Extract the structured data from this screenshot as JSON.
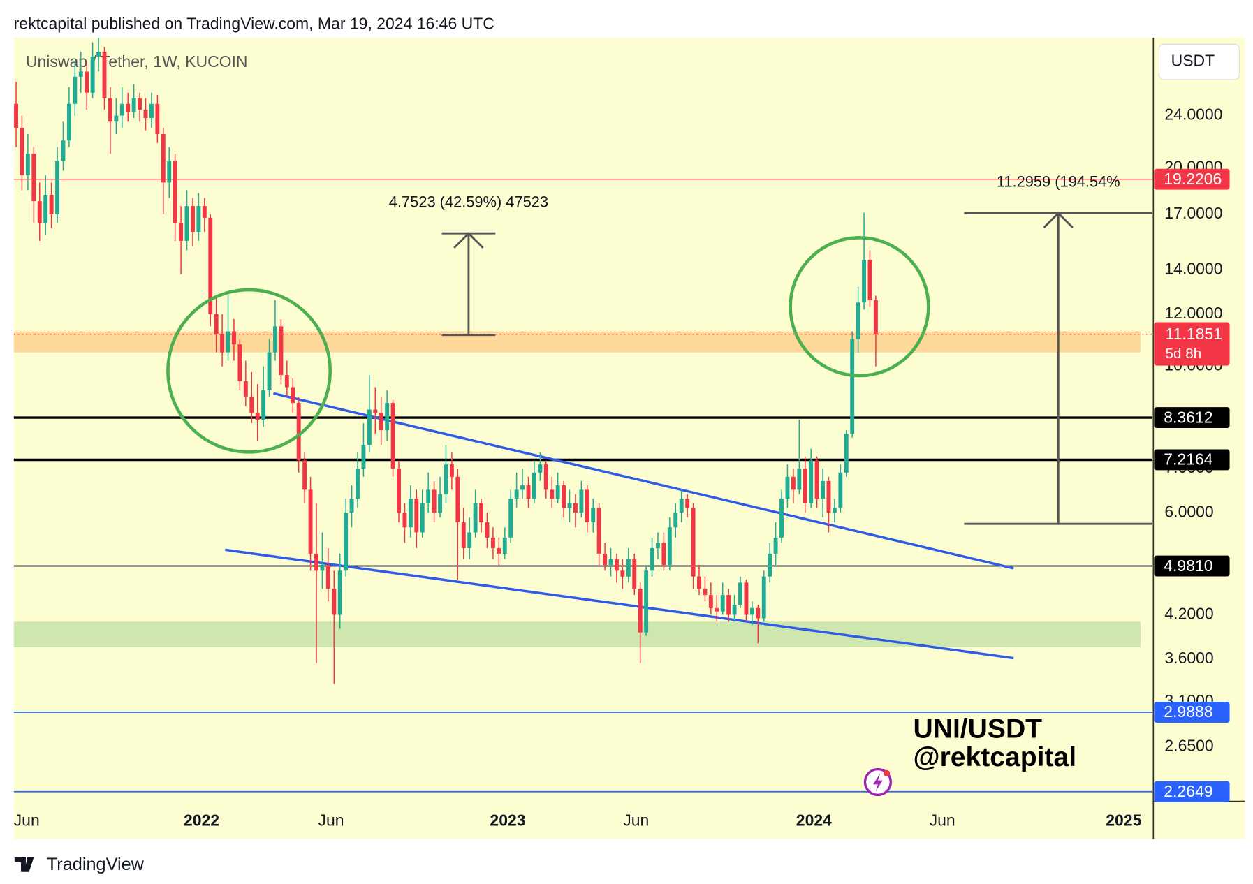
{
  "header": {
    "text": "rektcapital published on TradingView.com, Mar 19, 2024 16:46 UTC"
  },
  "chart_data": {
    "type": "candlestick",
    "title": "Uniswap / Tether, 1W, KUCOIN",
    "currency": "USDT",
    "up_color": "#22ab94",
    "down_color": "#f23645",
    "log_scale": true,
    "xlim": [
      -0.4,
      193
    ],
    "xticks": [
      {
        "value": 1.8,
        "label": "Jun",
        "bold": false
      },
      {
        "value": 31.5,
        "label": "2022",
        "bold": true
      },
      {
        "value": 53.5,
        "label": "Jun",
        "bold": false
      },
      {
        "value": 83.5,
        "label": "2023",
        "bold": true
      },
      {
        "value": 105.3,
        "label": "Jun",
        "bold": false
      },
      {
        "value": 135.5,
        "label": "2024",
        "bold": true
      },
      {
        "value": 157.3,
        "label": "Jun",
        "bold": false
      },
      {
        "value": 188.1,
        "label": "2025",
        "bold": true
      }
    ],
    "ylim": [
      2.19,
      31.5
    ],
    "yticks": [
      {
        "value": 24,
        "label": "24.0000"
      },
      {
        "value": 20,
        "label": "20.0000"
      },
      {
        "value": 17,
        "label": "17.0000"
      },
      {
        "value": 14,
        "label": "14.0000"
      },
      {
        "value": 12,
        "label": "12.0000"
      },
      {
        "value": 10,
        "label": "10.0000"
      },
      {
        "value": 7,
        "label": "7.0000"
      },
      {
        "value": 6,
        "label": "6.0000"
      },
      {
        "value": 4.2,
        "label": "4.2000"
      },
      {
        "value": 3.6,
        "label": "3.6000"
      },
      {
        "value": 3.1,
        "label": "3.1000"
      },
      {
        "value": 2.65,
        "label": "2.6500"
      }
    ],
    "ohlc": [
      [
        25,
        27,
        21.5,
        23
      ],
      [
        23,
        24,
        18.5,
        19.5
      ],
      [
        19.5,
        22.5,
        18.5,
        21
      ],
      [
        21,
        21.5,
        16.5,
        17.8
      ],
      [
        17.8,
        19,
        15.5,
        16.5
      ],
      [
        16.5,
        19.5,
        15.8,
        18.2
      ],
      [
        18.2,
        19,
        16.2,
        17
      ],
      [
        17,
        21.5,
        16.5,
        20.5
      ],
      [
        20.5,
        23.5,
        19.8,
        22
      ],
      [
        22,
        26.5,
        21.5,
        25
      ],
      [
        25,
        29,
        24,
        27.5
      ],
      [
        27.5,
        30,
        26,
        28
      ],
      [
        28,
        29,
        24.5,
        26
      ],
      [
        26,
        31,
        25.5,
        29.5
      ],
      [
        29.5,
        31.5,
        28,
        30
      ],
      [
        30,
        30.5,
        24.5,
        25.5
      ],
      [
        25.5,
        26.5,
        21,
        23.5
      ],
      [
        23.5,
        25.5,
        22.5,
        24
      ],
      [
        24,
        26.5,
        23,
        25
      ],
      [
        25,
        26,
        23.5,
        24.3
      ],
      [
        24.3,
        26.8,
        23.8,
        25.5
      ],
      [
        25.5,
        26,
        23.5,
        24.5
      ],
      [
        24.5,
        25.5,
        22.8,
        23.8
      ],
      [
        23.8,
        26,
        23,
        25
      ],
      [
        25,
        25.8,
        21.8,
        22.5
      ],
      [
        22.5,
        23,
        17,
        19
      ],
      [
        19,
        21.5,
        18,
        20.5
      ],
      [
        20.5,
        21,
        15.5,
        16.5
      ],
      [
        16.5,
        17.5,
        13.8,
        15.5
      ],
      [
        15.5,
        18.5,
        15,
        17.5
      ],
      [
        17.5,
        18,
        15.2,
        16
      ],
      [
        16,
        18.3,
        15.5,
        17.5
      ],
      [
        17.5,
        18,
        16,
        16.8
      ],
      [
        16.8,
        17,
        11.5,
        12
      ],
      [
        12,
        12.8,
        10.5,
        11.2
      ],
      [
        11.2,
        12,
        10,
        10.5
      ],
      [
        10.5,
        12.8,
        10.2,
        11.3
      ],
      [
        11.3,
        11.8,
        10.2,
        10.8
      ],
      [
        10.8,
        11,
        9.2,
        9.5
      ],
      [
        9.5,
        10.2,
        8.7,
        9
      ],
      [
        9,
        9.8,
        8.2,
        8.5
      ],
      [
        8.5,
        9.4,
        7.7,
        8.3
      ],
      [
        8.3,
        10,
        8.1,
        9.2
      ],
      [
        9.2,
        11,
        9,
        10.5
      ],
      [
        10.5,
        12.6,
        10.2,
        11.5
      ],
      [
        11.5,
        11.8,
        9.4,
        9.7
      ],
      [
        9.7,
        10.2,
        9,
        9.3
      ],
      [
        9.3,
        9.6,
        8.5,
        8.8
      ],
      [
        8.8,
        9,
        6.9,
        7.2
      ],
      [
        7.2,
        7.4,
        6.2,
        6.5
      ],
      [
        6.5,
        6.8,
        4.9,
        5.2
      ],
      [
        5.2,
        6.2,
        3.55,
        4.9
      ],
      [
        4.9,
        5.6,
        4.6,
        5
      ],
      [
        5,
        5.3,
        4.4,
        4.6
      ],
      [
        4.6,
        4.9,
        3.3,
        4.2
      ],
      [
        4.2,
        5.2,
        4,
        4.9
      ],
      [
        4.9,
        6.3,
        4.8,
        6
      ],
      [
        6,
        6.6,
        5.7,
        6.3
      ],
      [
        6.3,
        7.4,
        6.1,
        7
      ],
      [
        7,
        8.2,
        6.8,
        7.6
      ],
      [
        7.6,
        9.7,
        7.4,
        8.6
      ],
      [
        8.6,
        9.3,
        7.9,
        8.5
      ],
      [
        8.5,
        9,
        7.6,
        8
      ],
      [
        8,
        9.2,
        7.7,
        8.8
      ],
      [
        8.8,
        8.9,
        6.8,
        7
      ],
      [
        7,
        7.2,
        5.8,
        6
      ],
      [
        6,
        6.2,
        5.4,
        5.7
      ],
      [
        5.7,
        6.6,
        5.5,
        6.3
      ],
      [
        6.3,
        6.5,
        5.3,
        5.6
      ],
      [
        5.6,
        6.5,
        5.5,
        6.2
      ],
      [
        6.2,
        6.9,
        6,
        6.5
      ],
      [
        6.5,
        6.7,
        5.8,
        6
      ],
      [
        6,
        6.8,
        5.9,
        6.4
      ],
      [
        6.4,
        7.6,
        6.2,
        7.1
      ],
      [
        7.1,
        7.4,
        6.5,
        6.8
      ],
      [
        6.8,
        7,
        4.75,
        5.8
      ],
      [
        5.8,
        6.1,
        5.1,
        5.3
      ],
      [
        5.3,
        5.9,
        5.1,
        5.6
      ],
      [
        5.6,
        6.5,
        5.5,
        6.2
      ],
      [
        6.2,
        6.3,
        5.6,
        5.8
      ],
      [
        5.8,
        6,
        5.3,
        5.5
      ],
      [
        5.5,
        5.7,
        5.1,
        5.3
      ],
      [
        5.3,
        5.5,
        5,
        5.2
      ],
      [
        5.2,
        5.7,
        5.1,
        5.5
      ],
      [
        5.5,
        6.5,
        5.4,
        6.3
      ],
      [
        6.3,
        6.9,
        6.1,
        6.5
      ],
      [
        6.5,
        7,
        6.3,
        6.6
      ],
      [
        6.6,
        6.8,
        6.1,
        6.3
      ],
      [
        6.3,
        7.2,
        6.2,
        6.9
      ],
      [
        6.9,
        7.4,
        6.7,
        7.1
      ],
      [
        7.1,
        7.2,
        6.3,
        6.5
      ],
      [
        6.5,
        6.8,
        6.1,
        6.3
      ],
      [
        6.3,
        6.9,
        6.2,
        6.6
      ],
      [
        6.6,
        6.7,
        5.9,
        6.1
      ],
      [
        6.1,
        6.5,
        5.8,
        6.2
      ],
      [
        6.2,
        6.4,
        5.7,
        6
      ],
      [
        6,
        6.7,
        5.9,
        6.5
      ],
      [
        6.5,
        6.6,
        5.6,
        5.8
      ],
      [
        5.8,
        6.3,
        5.6,
        6.1
      ],
      [
        6.1,
        6.2,
        5,
        5.2
      ],
      [
        5.2,
        5.4,
        4.9,
        5
      ],
      [
        5,
        5.3,
        4.8,
        5.1
      ],
      [
        5.1,
        5.2,
        4.7,
        4.9
      ],
      [
        4.9,
        5.1,
        4.6,
        4.8
      ],
      [
        4.8,
        5.3,
        4.7,
        5.1
      ],
      [
        5.1,
        5.2,
        4.5,
        4.6
      ],
      [
        4.6,
        4.7,
        3.55,
        3.95
      ],
      [
        3.95,
        5,
        3.9,
        4.9
      ],
      [
        4.9,
        5.5,
        4.8,
        5.3
      ],
      [
        5.3,
        5.6,
        5.1,
        5.4
      ],
      [
        5.4,
        5.6,
        4.9,
        5
      ],
      [
        5,
        5.9,
        4.9,
        5.7
      ],
      [
        5.7,
        6.2,
        5.5,
        6
      ],
      [
        6,
        6.5,
        5.8,
        6.3
      ],
      [
        6.3,
        6.4,
        5.9,
        6.1
      ],
      [
        6.1,
        6.2,
        4.6,
        4.8
      ],
      [
        4.8,
        5,
        4.5,
        4.6
      ],
      [
        4.6,
        4.8,
        4.4,
        4.5
      ],
      [
        4.5,
        4.7,
        4.2,
        4.3
      ],
      [
        4.3,
        4.5,
        4.1,
        4.25
      ],
      [
        4.25,
        4.7,
        4.2,
        4.5
      ],
      [
        4.5,
        4.6,
        4.1,
        4.2
      ],
      [
        4.2,
        4.5,
        4.1,
        4.35
      ],
      [
        4.35,
        4.8,
        4.3,
        4.7
      ],
      [
        4.7,
        4.75,
        4.1,
        4.2
      ],
      [
        4.2,
        4.4,
        4.05,
        4.3
      ],
      [
        4.3,
        4.35,
        3.8,
        4.15
      ],
      [
        4.15,
        4.9,
        4.1,
        4.8
      ],
      [
        4.8,
        5.4,
        4.7,
        5.2
      ],
      [
        5.2,
        5.8,
        5,
        5.5
      ],
      [
        5.5,
        6.5,
        5.4,
        6.3
      ],
      [
        6.3,
        7.1,
        6.1,
        6.8
      ],
      [
        6.8,
        7,
        6.2,
        6.5
      ],
      [
        6.5,
        8.3,
        6.4,
        7
      ],
      [
        7,
        7.3,
        6,
        6.2
      ],
      [
        6.2,
        7.5,
        6.1,
        7.2
      ],
      [
        7.2,
        7.3,
        6.1,
        6.3
      ],
      [
        6.3,
        7,
        5.9,
        6.7
      ],
      [
        6.7,
        6.8,
        5.6,
        6
      ],
      [
        6,
        6.3,
        5.8,
        6.1
      ],
      [
        6.1,
        7.1,
        6,
        6.9
      ],
      [
        6.9,
        8,
        6.8,
        7.9
      ],
      [
        7.9,
        11.3,
        7.8,
        11
      ],
      [
        11,
        13.2,
        10.5,
        12.5
      ],
      [
        12.5,
        17.1,
        12.2,
        14.5
      ],
      [
        14.5,
        15,
        12.3,
        12.6
      ],
      [
        12.6,
        12.8,
        10,
        11.1851
      ]
    ],
    "levels": [
      {
        "value": 19.2206,
        "label": "19.2206",
        "color": "#f23645",
        "width": 1.2
      },
      {
        "value": 8.3612,
        "label": "8.3612",
        "color": "#000000",
        "width": 3
      },
      {
        "value": 7.2164,
        "label": "7.2164",
        "color": "#000000",
        "width": 3
      },
      {
        "value": 4.981,
        "label": "4.9810",
        "color": "#000000",
        "width": 1.5
      },
      {
        "value": 2.9888,
        "label": "2.9888",
        "color": "#2962ff",
        "width": 1.5
      },
      {
        "value": 2.2649,
        "label": "2.2649",
        "color": "#2962ff",
        "width": 1.5
      }
    ],
    "current_price": {
      "value": 11.1851,
      "label": "11.1851",
      "countdown": "5d 8h",
      "color": "#f23645"
    },
    "zones": [
      {
        "from": 10.5,
        "to": 11.3,
        "color": "#fed18f"
      },
      {
        "from": 3.75,
        "to": 4.1,
        "color": "#c6e3a8"
      }
    ],
    "trendlines": [
      {
        "x": [
          43.7,
          169.4
        ],
        "y": [
          9.1,
          4.94
        ],
        "color": "#2e5ce6"
      },
      {
        "x": [
          35.5,
          169.4
        ],
        "y": [
          5.27,
          3.61
        ],
        "color": "#2e5ce6"
      }
    ],
    "measures": [
      {
        "label": "4.7523 (42.59%) 47523",
        "x": [
          72.3,
          81.4
        ],
        "y": [
          11.16,
          15.91
        ]
      },
      {
        "label": "11.2959 (194.54%",
        "x": [
          161,
          193
        ],
        "y": [
          5.77,
          17.07
        ]
      }
    ],
    "watermark": [
      "UNI/USDT",
      "@rektcapital"
    ]
  },
  "footer": {
    "brand": "TradingView"
  }
}
